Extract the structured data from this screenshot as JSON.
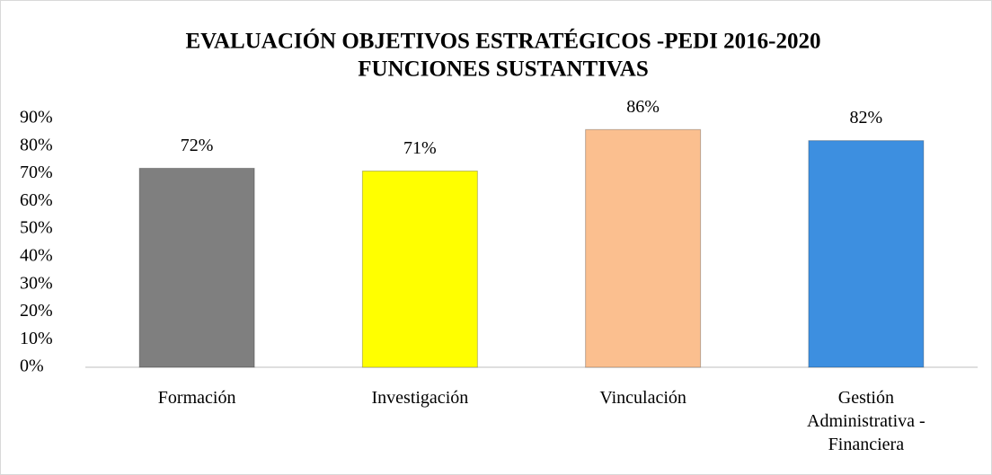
{
  "chart_data": {
    "type": "bar",
    "title": "EVALUACIÓN OBJETIVOS ESTRATÉGICOS -PEDI 2016-2020",
    "subtitle": "FUNCIONES SUSTANTIVAS",
    "categories": [
      "Formación",
      "Investigación",
      "Vinculación",
      "Gestión Administrativa - Financiera"
    ],
    "values": [
      72,
      71,
      86,
      82
    ],
    "value_labels": [
      "72%",
      "71%",
      "86%",
      "82%"
    ],
    "colors": [
      "#7f7f7f",
      "#ffff00",
      "#fbbf8f",
      "#3d8fe0"
    ],
    "ylim": [
      0,
      90
    ],
    "yticks": [
      {
        "value": 0,
        "label": "0%"
      },
      {
        "value": 10,
        "label": "10%"
      },
      {
        "value": 20,
        "label": "20%"
      },
      {
        "value": 30,
        "label": "30%"
      },
      {
        "value": 40,
        "label": "40%"
      },
      {
        "value": 50,
        "label": "50%"
      },
      {
        "value": 60,
        "label": "60%"
      },
      {
        "value": 70,
        "label": "70%"
      },
      {
        "value": 80,
        "label": "80%"
      },
      {
        "value": 90,
        "label": "90%"
      }
    ],
    "grid": false
  }
}
